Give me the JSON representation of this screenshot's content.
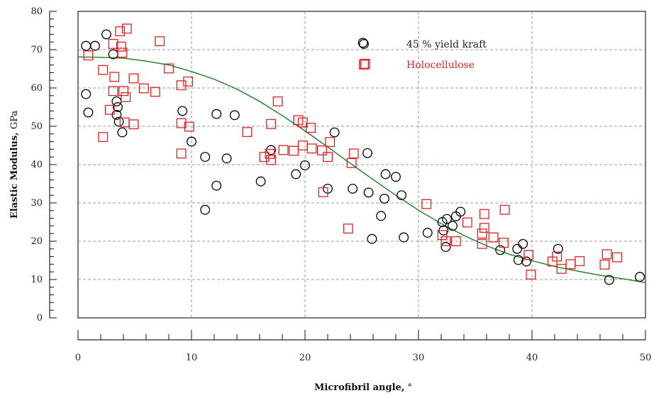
{
  "chart_data": {
    "type": "scatter",
    "title": "",
    "xlabel": "Microfibril angle, °",
    "xlabel_bold": "Microfibril angle,",
    "xlabel_unit": " °",
    "ylabel": "Elastic Modulus, GPa",
    "ylabel_bold": "Elastic Modulus,",
    "ylabel_unit": " GPa",
    "xlim": [
      0,
      50
    ],
    "ylim": [
      0,
      80
    ],
    "xticks": [
      0,
      10,
      20,
      30,
      40,
      50
    ],
    "yticks": [
      0,
      10,
      20,
      30,
      40,
      50,
      60,
      70,
      80
    ],
    "grid": true,
    "legend_position": "top-right",
    "series": [
      {
        "name": "45 % yield kraft",
        "marker": "circle",
        "color": "#000000",
        "points": [
          [
            0.7,
            71.0
          ],
          [
            1.5,
            71.0
          ],
          [
            2.5,
            74.0
          ],
          [
            3.1,
            68.8
          ],
          [
            0.7,
            58.4
          ],
          [
            0.9,
            53.6
          ],
          [
            3.4,
            56.5
          ],
          [
            3.5,
            55.0
          ],
          [
            3.4,
            53.0
          ],
          [
            3.6,
            51.2
          ],
          [
            3.9,
            48.4
          ],
          [
            9.2,
            54.0
          ],
          [
            10.0,
            46.0
          ],
          [
            11.2,
            42.0
          ],
          [
            11.2,
            28.2
          ],
          [
            12.2,
            53.2
          ],
          [
            12.2,
            34.5
          ],
          [
            13.1,
            41.6
          ],
          [
            13.8,
            52.9
          ],
          [
            16.1,
            35.6
          ],
          [
            17.0,
            43.8
          ],
          [
            19.2,
            37.5
          ],
          [
            20.0,
            39.8
          ],
          [
            22.0,
            33.7
          ],
          [
            22.6,
            48.4
          ],
          [
            24.2,
            33.7
          ],
          [
            25.1,
            71.8
          ],
          [
            25.5,
            43.0
          ],
          [
            25.6,
            32.7
          ],
          [
            25.9,
            20.6
          ],
          [
            26.7,
            26.6
          ],
          [
            27.0,
            31.1
          ],
          [
            27.1,
            37.5
          ],
          [
            28.0,
            36.8
          ],
          [
            28.5,
            32.0
          ],
          [
            28.7,
            21.0
          ],
          [
            30.8,
            22.2
          ],
          [
            32.1,
            25.0
          ],
          [
            32.2,
            22.8
          ],
          [
            32.5,
            25.8
          ],
          [
            32.4,
            18.5
          ],
          [
            33.0,
            24.0
          ],
          [
            33.3,
            26.5
          ],
          [
            33.7,
            27.7
          ],
          [
            37.2,
            17.7
          ],
          [
            38.7,
            18.0
          ],
          [
            38.8,
            15.1
          ],
          [
            39.2,
            19.3
          ],
          [
            39.5,
            14.7
          ],
          [
            42.3,
            18.0
          ],
          [
            46.8,
            9.9
          ],
          [
            49.5,
            10.7
          ]
        ]
      },
      {
        "name": "Holocellulose",
        "marker": "square",
        "color": "#dd2222",
        "points": [
          [
            0.9,
            68.5
          ],
          [
            2.2,
            64.7
          ],
          [
            2.2,
            47.2
          ],
          [
            2.8,
            54.3
          ],
          [
            3.1,
            71.5
          ],
          [
            3.1,
            59.2
          ],
          [
            3.2,
            62.9
          ],
          [
            3.7,
            74.8
          ],
          [
            3.8,
            70.8
          ],
          [
            3.9,
            69.2
          ],
          [
            4.0,
            59.2
          ],
          [
            4.1,
            51.0
          ],
          [
            4.3,
            75.5
          ],
          [
            4.2,
            57.6
          ],
          [
            4.9,
            62.5
          ],
          [
            4.9,
            50.5
          ],
          [
            5.8,
            59.9
          ],
          [
            6.8,
            59.0
          ],
          [
            7.2,
            72.2
          ],
          [
            8.0,
            65.1
          ],
          [
            9.1,
            60.7
          ],
          [
            9.1,
            50.8
          ],
          [
            9.1,
            42.9
          ],
          [
            9.7,
            61.7
          ],
          [
            9.8,
            49.9
          ],
          [
            14.9,
            48.5
          ],
          [
            16.4,
            42.0
          ],
          [
            16.9,
            42.8
          ],
          [
            17.0,
            41.2
          ],
          [
            17.0,
            50.6
          ],
          [
            17.6,
            56.5
          ],
          [
            18.1,
            43.8
          ],
          [
            19.0,
            43.6
          ],
          [
            19.4,
            51.6
          ],
          [
            19.8,
            45.0
          ],
          [
            19.8,
            51.0
          ],
          [
            20.5,
            49.6
          ],
          [
            20.6,
            44.2
          ],
          [
            21.5,
            43.7
          ],
          [
            21.6,
            32.8
          ],
          [
            22.0,
            42.0
          ],
          [
            22.2,
            45.9
          ],
          [
            24.1,
            40.4
          ],
          [
            24.3,
            42.9
          ],
          [
            23.8,
            23.3
          ],
          [
            25.3,
            66.3
          ],
          [
            30.7,
            29.7
          ],
          [
            32.1,
            21.6
          ],
          [
            32.4,
            20.0
          ],
          [
            33.3,
            20.0
          ],
          [
            34.3,
            24.9
          ],
          [
            35.6,
            19.3
          ],
          [
            35.6,
            22.0
          ],
          [
            35.8,
            27.1
          ],
          [
            35.8,
            23.5
          ],
          [
            36.6,
            21.0
          ],
          [
            37.5,
            19.6
          ],
          [
            37.6,
            28.2
          ],
          [
            39.7,
            16.4
          ],
          [
            39.9,
            11.3
          ],
          [
            41.8,
            14.7
          ],
          [
            42.2,
            16.0
          ],
          [
            42.6,
            12.8
          ],
          [
            43.4,
            14.0
          ],
          [
            44.2,
            14.8
          ],
          [
            46.4,
            13.9
          ],
          [
            46.6,
            16.6
          ],
          [
            47.5,
            15.8
          ]
        ]
      },
      {
        "name": "",
        "type": "line",
        "color": "#1e7a1e",
        "points": [
          [
            0,
            68.1
          ],
          [
            2,
            68.0
          ],
          [
            4,
            67.8
          ],
          [
            6,
            67.0
          ],
          [
            8,
            66.0
          ],
          [
            10,
            64.3
          ],
          [
            12,
            62.3
          ],
          [
            14,
            59.7
          ],
          [
            16,
            56.5
          ],
          [
            18,
            52.8
          ],
          [
            20,
            48.8
          ],
          [
            22,
            44.6
          ],
          [
            24,
            40.3
          ],
          [
            26,
            36.1
          ],
          [
            28,
            32.0
          ],
          [
            30,
            28.1
          ],
          [
            32,
            24.6
          ],
          [
            34,
            21.5
          ],
          [
            36,
            18.8
          ],
          [
            38,
            16.6
          ],
          [
            40,
            14.9
          ],
          [
            42,
            13.4
          ],
          [
            44,
            12.2
          ],
          [
            46,
            11.1
          ],
          [
            48,
            10.2
          ],
          [
            50,
            9.2
          ]
        ]
      }
    ]
  }
}
